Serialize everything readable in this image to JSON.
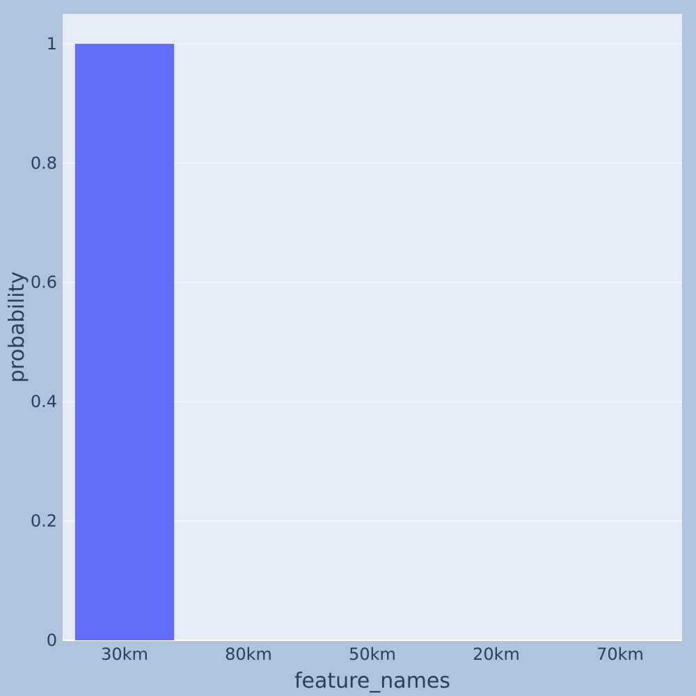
{
  "chart_data": {
    "type": "bar",
    "categories": [
      "30km",
      "80km",
      "50km",
      "20km",
      "70km"
    ],
    "values": [
      1,
      0,
      0,
      0,
      0
    ],
    "xlabel": "feature_names",
    "ylabel": "probability",
    "ylim": [
      0,
      1.05
    ],
    "yticks": [
      0,
      0.2,
      0.4,
      0.6,
      0.8,
      1
    ],
    "ytick_labels": [
      "0",
      "0.2",
      "0.4",
      "0.6",
      "0.8",
      "1"
    ],
    "grid": true,
    "legend": "none",
    "colors": {
      "paper": "#b0c4de",
      "plot_bg": "#e5ecf6",
      "bar": "#636efa",
      "grid": "#ffffff",
      "text": "#2a3f5f"
    }
  }
}
